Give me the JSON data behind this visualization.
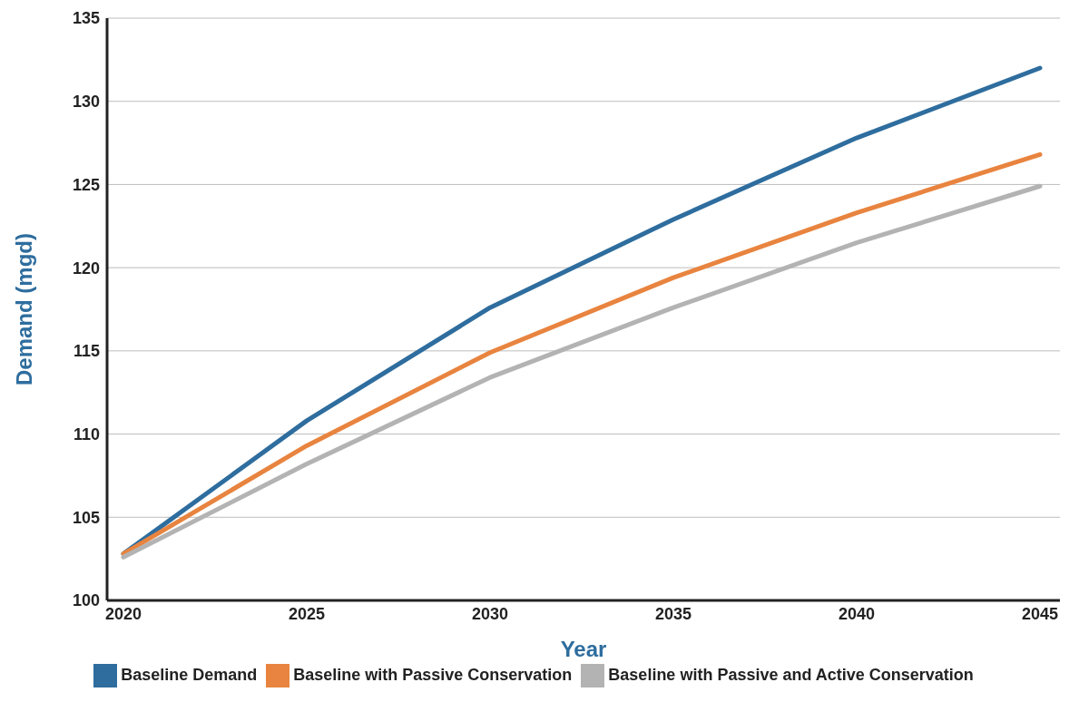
{
  "chart_data": {
    "type": "line",
    "xlabel": "Year",
    "ylabel": "Demand (mgd)",
    "categories": [
      "2020",
      "2025",
      "2030",
      "2035",
      "2040",
      "2045"
    ],
    "series": [
      {
        "name": "Baseline Demand",
        "color": "#2e6d9e",
        "values": [
          102.8,
          110.8,
          117.6,
          122.9,
          127.8,
          132.0
        ]
      },
      {
        "name": "Baseline with Passive Conservation",
        "color": "#e8843f",
        "values": [
          102.8,
          109.3,
          114.9,
          119.4,
          123.3,
          126.8
        ]
      },
      {
        "name": "Baseline with Passive and Active Conservation",
        "color": "#b3b3b3",
        "values": [
          102.6,
          108.2,
          113.4,
          117.6,
          121.5,
          124.9
        ]
      }
    ],
    "ylim": [
      100,
      135
    ],
    "yticks": [
      100,
      105,
      110,
      115,
      120,
      125,
      130,
      135
    ],
    "grid": "y",
    "legend": "bottom",
    "marker": "none",
    "line_style": "solid"
  }
}
